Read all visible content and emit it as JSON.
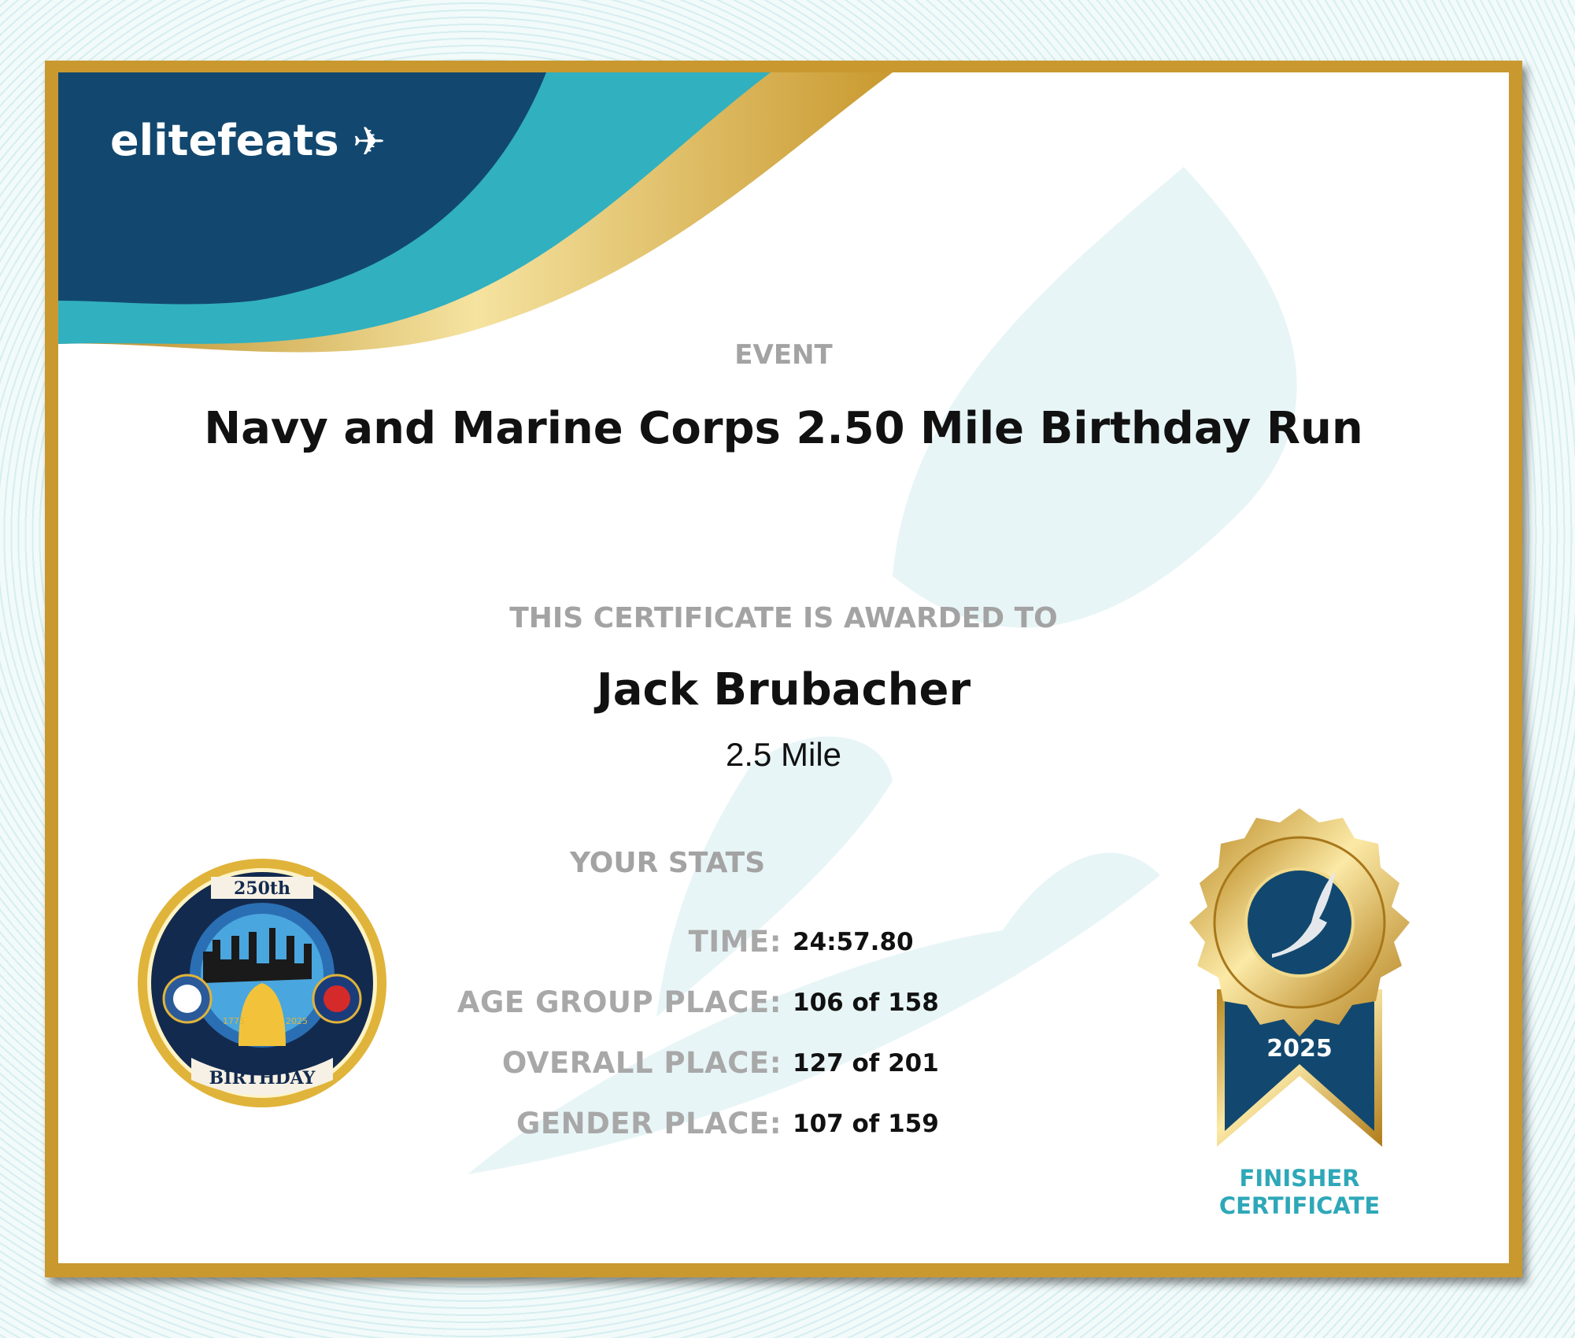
{
  "brand": {
    "logo_text": "elitefeats"
  },
  "event": {
    "label": "EVENT",
    "name": "Navy and Marine Corps 2.50 Mile Birthday Run"
  },
  "award": {
    "label": "THIS CERTIFICATE IS AWARDED TO",
    "recipient": "Jack Brubacher",
    "distance": "2.5 Mile"
  },
  "stats": {
    "heading": "YOUR STATS",
    "rows": [
      {
        "label": "TIME:",
        "value": "24:57.80"
      },
      {
        "label": "AGE GROUP PLACE:",
        "value": "106 of 158"
      },
      {
        "label": "OVERALL PLACE:",
        "value": "127 of 201"
      },
      {
        "label": "GENDER PLACE:",
        "value": "107 of 159"
      }
    ]
  },
  "seal": {
    "top_text": "250th",
    "bottom_text": "BIRTHDAY",
    "years": [
      "1775",
      "2025"
    ]
  },
  "badge": {
    "year": "2025",
    "line1": "FINISHER",
    "line2": "CERTIFICATE"
  },
  "colors": {
    "navy": "#12486f",
    "teal": "#31b0c0",
    "gold": "#c9992f",
    "badge_text": "#2ea8b8"
  }
}
